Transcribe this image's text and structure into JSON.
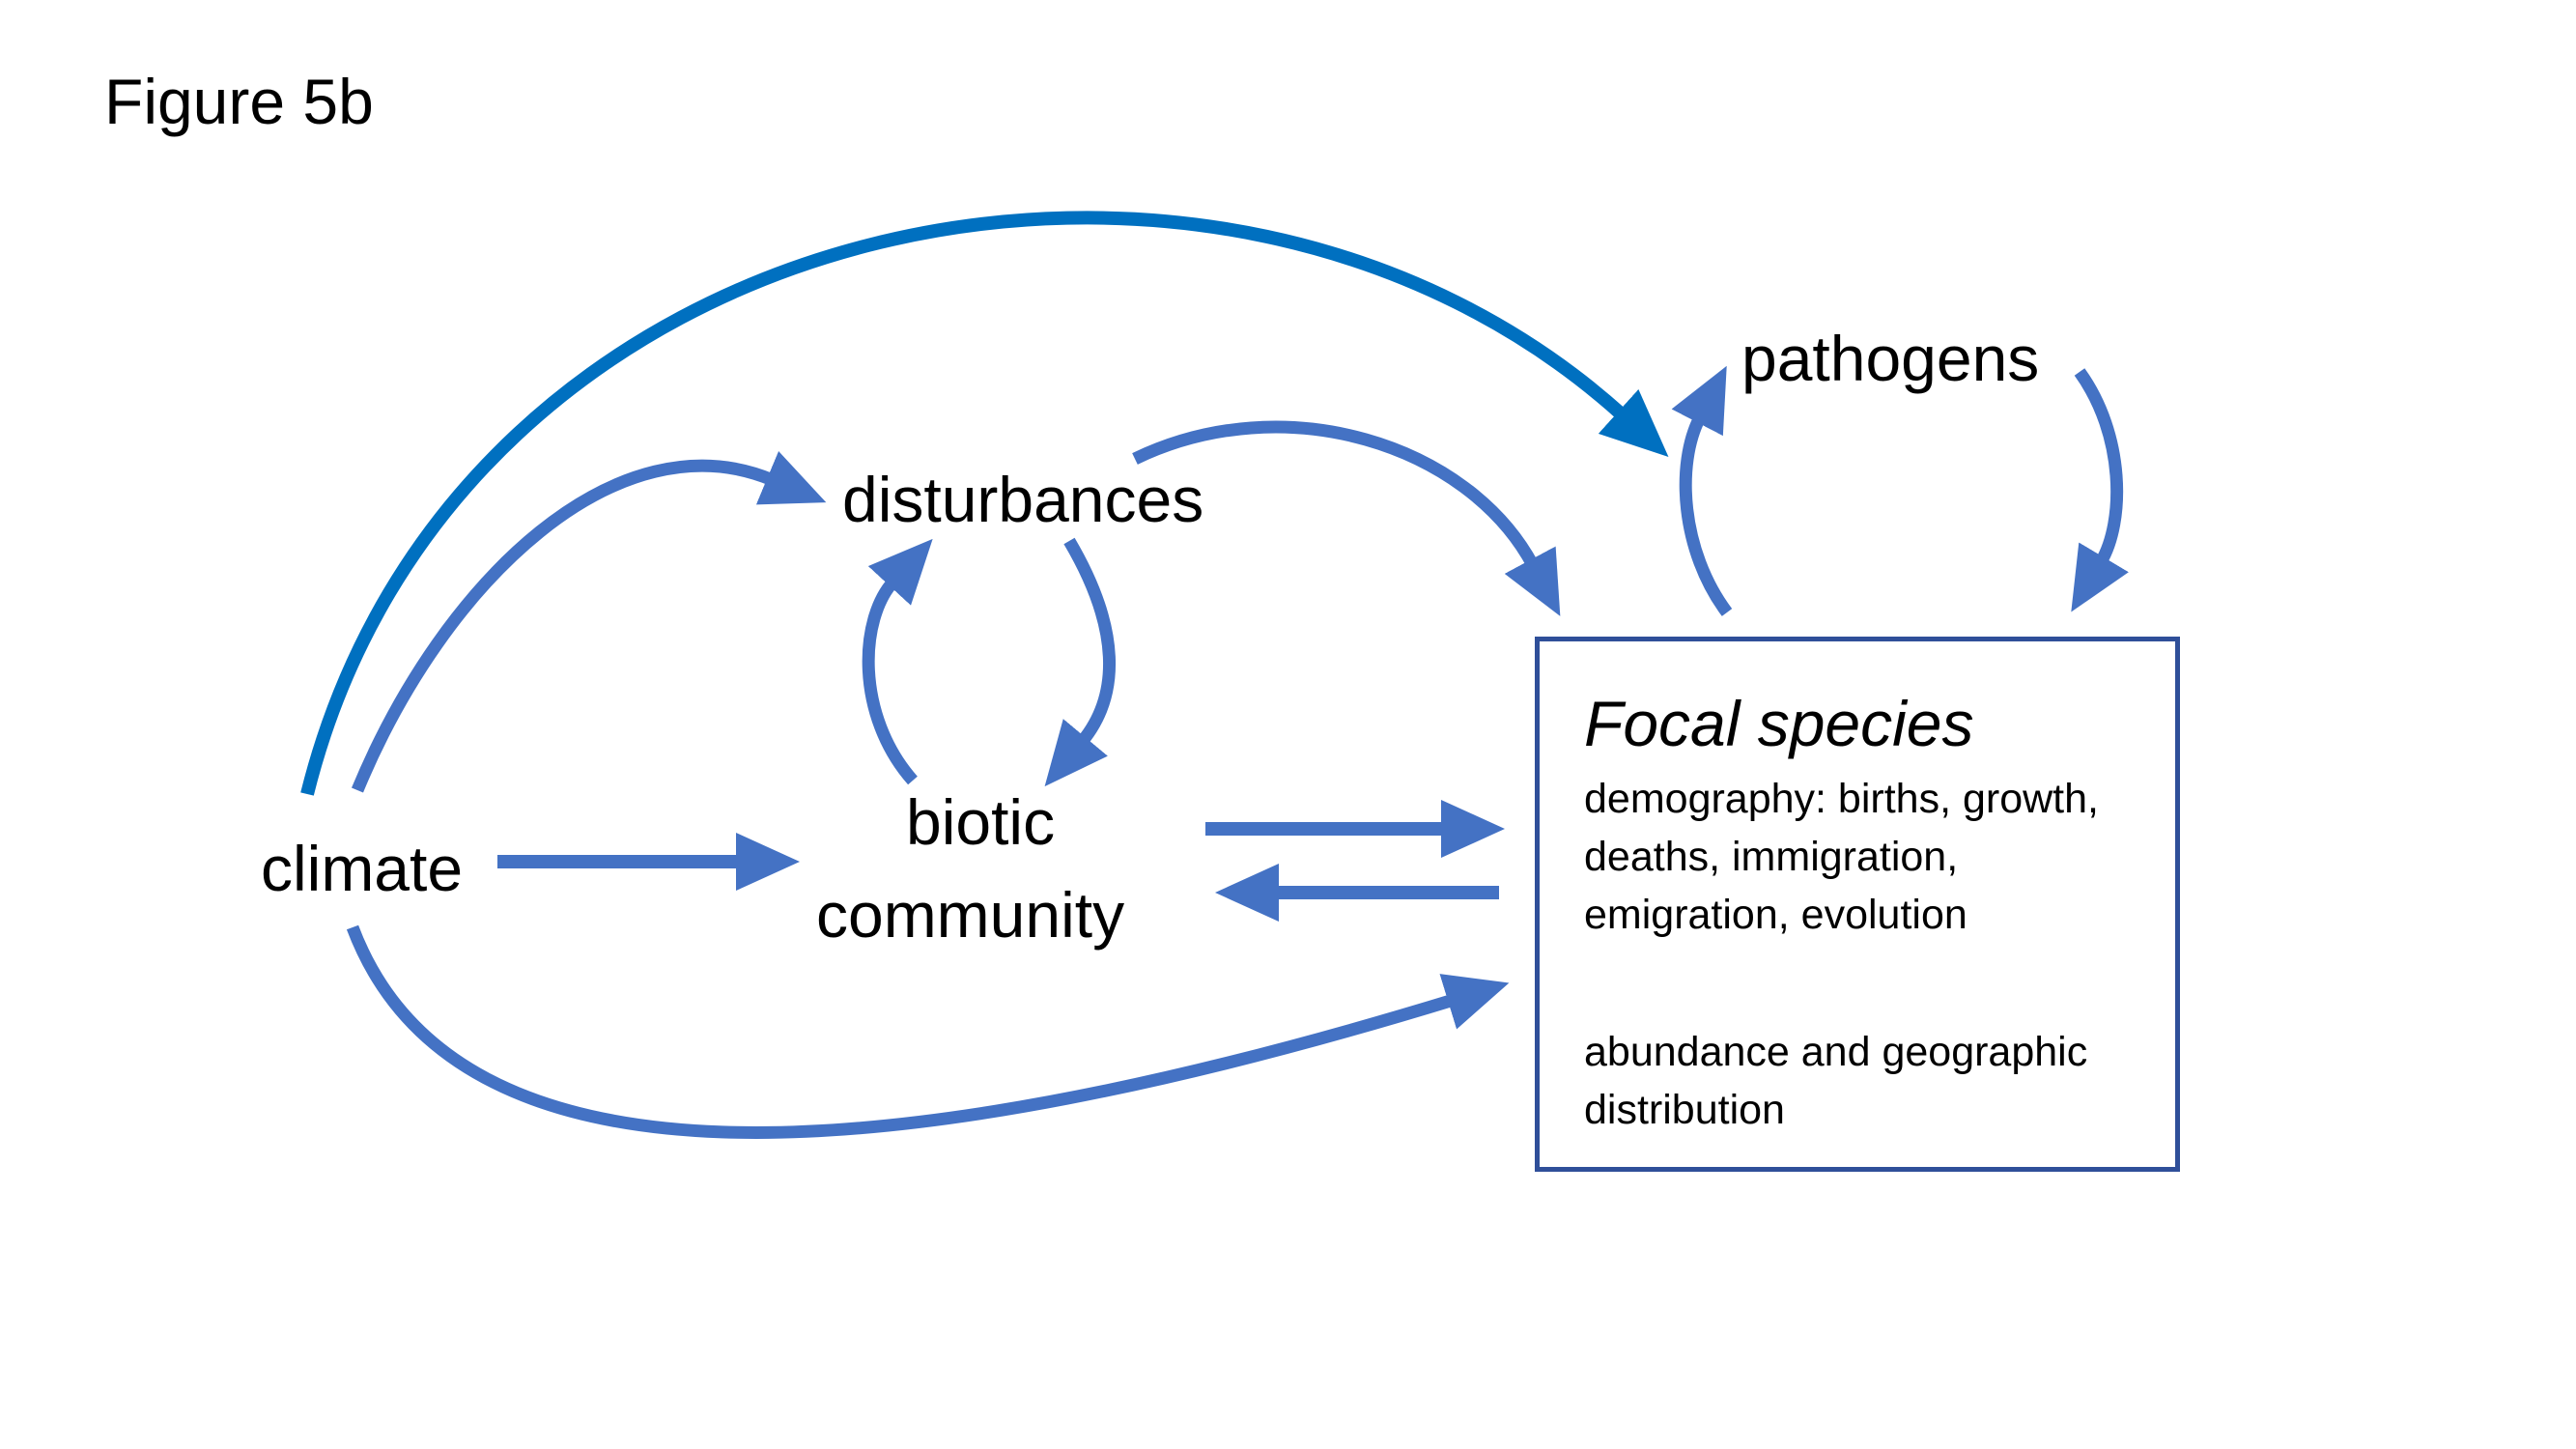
{
  "figure_label": "Figure 5b",
  "nodes": {
    "climate": "climate",
    "disturbances": "disturbances",
    "biotic_line1": "biotic",
    "biotic_line2": "community",
    "pathogens": "pathogens"
  },
  "focal_box": {
    "title": "Focal species",
    "demography_lines": [
      "demography: births, growth,",
      "deaths, immigration,",
      "emigration, evolution"
    ],
    "outcome_lines": [
      "abundance and geographic",
      "distribution"
    ]
  },
  "colors": {
    "arrow": "#4472C4",
    "highlight_arrow": "#0070C0",
    "box_border": "#2F4F99"
  }
}
